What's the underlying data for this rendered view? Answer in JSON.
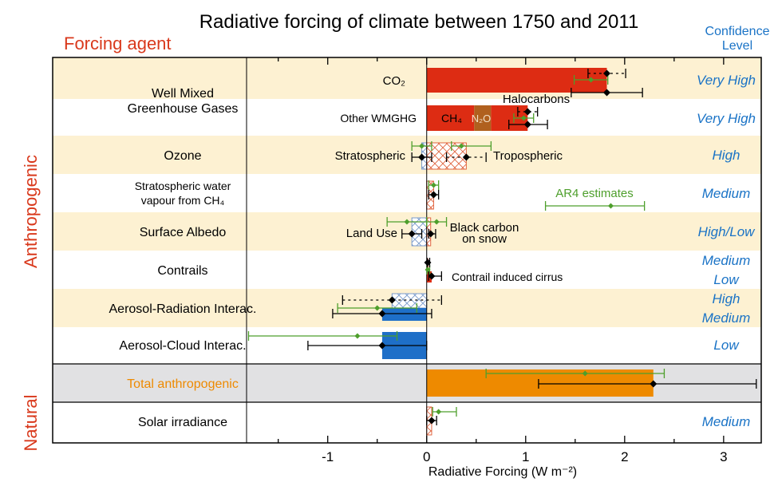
{
  "chart_data": {
    "type": "bar",
    "orientation": "horizontal",
    "title": "Radiative forcing of climate between 1750 and 2011",
    "column_header_left": "Forcing agent",
    "column_header_right": "Confidence Level",
    "xlabel": "Radiative Forcing (W m⁻²)",
    "xlim": [
      -1.82,
      3.38
    ],
    "xticks": [
      -1,
      0,
      1,
      2,
      3
    ],
    "grid": false,
    "groups": [
      {
        "label": "Anthropogenic"
      },
      {
        "label": "Natural"
      }
    ],
    "legend": {
      "label": "AR4 estimates",
      "value": 1.86,
      "low": 1.2,
      "high": 2.2,
      "placement": "center-right"
    },
    "colors": {
      "ghg": "#dd2c13",
      "n2o": "#b0601e",
      "aerosol": "#1e6fc8",
      "total": "#ee8a00",
      "ar4": "#4e9f2c",
      "band": "#fdf1d2",
      "total_band": "#e1e1e3",
      "confidence": "#1a73c6",
      "header": "#d9391c"
    },
    "rows": [
      {
        "agent": "Well Mixed Greenhouse Gases",
        "sub": "CO₂",
        "confidence": "Very High",
        "bars": [
          {
            "from": 0,
            "to": 1.82,
            "fill": "ghg"
          }
        ],
        "ar5": [
          {
            "value": 1.82,
            "low": 1.63,
            "high": 2.01,
            "line": "dotted"
          },
          {
            "value": 1.82,
            "low": 1.46,
            "high": 2.18,
            "line": "solid"
          }
        ],
        "ar4": [
          {
            "value": 1.66,
            "low": 1.49,
            "high": 1.83
          }
        ]
      },
      {
        "agent": "",
        "sub": "Other WMGHG",
        "confidence": "Very High",
        "components": [
          "CH₄",
          "N₂O",
          "Halocarbons"
        ],
        "bars": [
          {
            "from": 0,
            "to": 0.48,
            "fill": "ghg"
          },
          {
            "from": 0.48,
            "to": 0.65,
            "fill": "n2o"
          },
          {
            "from": 0.65,
            "to": 1.02,
            "fill": "ghg"
          }
        ],
        "ar5": [
          {
            "value": 1.02,
            "low": 0.92,
            "high": 1.12,
            "line": "dotted"
          },
          {
            "value": 1.02,
            "low": 0.83,
            "high": 1.22,
            "line": "solid"
          }
        ],
        "ar4": [
          {
            "value": 0.98,
            "low": 0.88,
            "high": 1.08
          }
        ]
      },
      {
        "agent": "Ozone",
        "sub_left": "Stratospheric",
        "sub_right": "Tropospheric",
        "confidence": "High",
        "bars": [
          {
            "from": -0.05,
            "to": 0,
            "fill": "hatch-blue"
          },
          {
            "from": 0,
            "to": 0.4,
            "fill": "hatch-red"
          }
        ],
        "ar5": [
          {
            "value": -0.05,
            "low": -0.15,
            "high": 0.05,
            "line": "solid"
          },
          {
            "value": 0.4,
            "low": 0.2,
            "high": 0.6,
            "line": "dotted"
          }
        ],
        "ar4": [
          {
            "value": -0.05,
            "low": -0.15,
            "high": 0.05
          },
          {
            "value": 0.35,
            "low": 0.25,
            "high": 0.65
          }
        ]
      },
      {
        "agent": "Stratospheric water vapour from CH₄",
        "confidence": "Medium",
        "bars": [
          {
            "from": 0,
            "to": 0.07,
            "fill": "hatch-red"
          }
        ],
        "ar5": [
          {
            "value": 0.07,
            "low": 0.02,
            "high": 0.12,
            "line": "solid"
          }
        ],
        "ar4": [
          {
            "value": 0.07,
            "low": 0.02,
            "high": 0.12
          }
        ]
      },
      {
        "agent": "Surface Albedo",
        "sub_left": "Land Use",
        "sub_right": "Black carbon on snow",
        "confidence": "High/Low",
        "bars": [
          {
            "from": -0.15,
            "to": 0,
            "fill": "hatch-blue"
          },
          {
            "from": 0,
            "to": 0.04,
            "fill": "hatch-red"
          }
        ],
        "ar5": [
          {
            "value": -0.15,
            "low": -0.25,
            "high": -0.05,
            "line": "solid"
          },
          {
            "value": 0.04,
            "low": 0.02,
            "high": 0.09,
            "line": "solid"
          }
        ],
        "ar4": [
          {
            "value": -0.2,
            "low": -0.4,
            "high": 0.0
          },
          {
            "value": 0.1,
            "low": 0.0,
            "high": 0.2
          }
        ]
      },
      {
        "agent": "Contrails",
        "sub_right": "Contrail induced cirrus",
        "confidence": [
          "Medium",
          "Low"
        ],
        "bars": [
          {
            "from": 0,
            "to": 0.01,
            "fill": "ghg"
          },
          {
            "from": 0,
            "to": 0.05,
            "fill": "ghg"
          }
        ],
        "ar5": [
          {
            "value": 0.01,
            "low": 0.005,
            "high": 0.03,
            "line": "solid"
          },
          {
            "value": 0.05,
            "low": 0.02,
            "high": 0.15,
            "line": "solid"
          }
        ],
        "ar4": [
          {
            "value": 0.01,
            "low": 0.003,
            "high": 0.03
          }
        ]
      },
      {
        "agent": "Aerosol-Radiation Interac.",
        "confidence": [
          "High",
          "Medium"
        ],
        "bars": [
          {
            "from": -0.35,
            "to": 0,
            "fill": "hatch-blue"
          },
          {
            "from": -0.45,
            "to": 0,
            "fill": "aerosol"
          }
        ],
        "ar5": [
          {
            "value": -0.35,
            "low": -0.85,
            "high": 0.15,
            "line": "dotted"
          },
          {
            "value": -0.45,
            "low": -0.95,
            "high": 0.05,
            "line": "solid"
          }
        ],
        "ar4": [
          {
            "value": -0.5,
            "low": -0.9,
            "high": -0.1
          }
        ]
      },
      {
        "agent": "Aerosol-Cloud Interac.",
        "confidence": "Low",
        "bars": [
          {
            "from": -0.45,
            "to": 0,
            "fill": "aerosol"
          }
        ],
        "ar5": [
          {
            "value": -0.45,
            "low": -1.2,
            "high": 0.0,
            "line": "solid"
          }
        ],
        "ar4": [
          {
            "value": -0.7,
            "low": -1.8,
            "high": -0.3
          }
        ]
      },
      {
        "agent": "Total anthropogenic",
        "confidence": "",
        "bars": [
          {
            "from": 0,
            "to": 2.29,
            "fill": "total"
          }
        ],
        "ar5": [
          {
            "value": 2.29,
            "low": 1.13,
            "high": 3.33,
            "line": "solid"
          }
        ],
        "ar4": [
          {
            "value": 1.6,
            "low": 0.6,
            "high": 2.4
          }
        ]
      },
      {
        "agent": "Solar irradiance",
        "confidence": "Medium",
        "bars": [
          {
            "from": 0,
            "to": 0.05,
            "fill": "hatch-red"
          }
        ],
        "ar5": [
          {
            "value": 0.05,
            "low": 0.0,
            "high": 0.1,
            "line": "solid"
          }
        ],
        "ar4": [
          {
            "value": 0.12,
            "low": 0.06,
            "high": 0.3
          }
        ]
      }
    ]
  }
}
